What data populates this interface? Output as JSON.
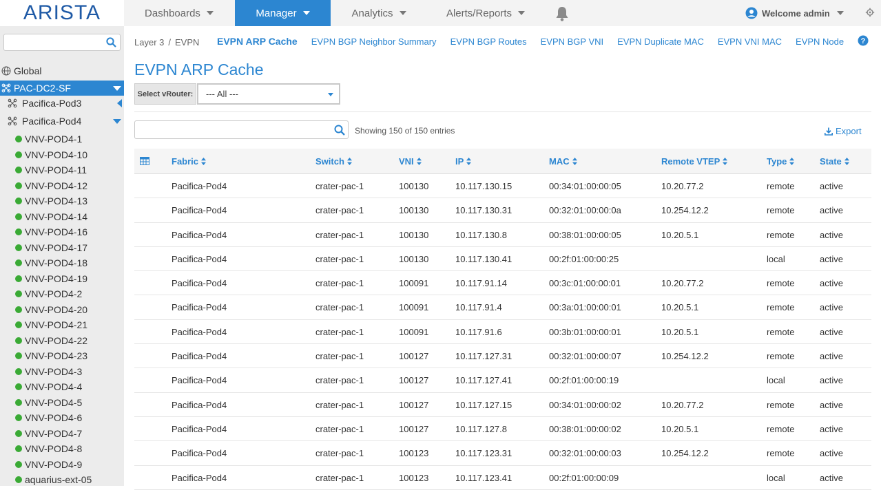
{
  "brand": {
    "logo_text": "ARISTA"
  },
  "topnav": {
    "items": [
      {
        "label": "Dashboards"
      },
      {
        "label": "Manager"
      },
      {
        "label": "Analytics"
      },
      {
        "label": "Alerts/Reports"
      }
    ],
    "welcome": "Welcome admin"
  },
  "sidebar": {
    "search_placeholder": "",
    "global_label": "Global",
    "site_label": "PAC-DC2-SF",
    "pods": [
      "Pacifica-Pod3",
      "Pacifica-Pod4"
    ],
    "vnvs": [
      "VNV-POD4-1",
      "VNV-POD4-10",
      "VNV-POD4-11",
      "VNV-POD4-12",
      "VNV-POD4-13",
      "VNV-POD4-14",
      "VNV-POD4-16",
      "VNV-POD4-17",
      "VNV-POD4-18",
      "VNV-POD4-19",
      "VNV-POD4-2",
      "VNV-POD4-20",
      "VNV-POD4-21",
      "VNV-POD4-22",
      "VNV-POD4-23",
      "VNV-POD4-3",
      "VNV-POD4-4",
      "VNV-POD4-5",
      "VNV-POD4-6",
      "VNV-POD4-7",
      "VNV-POD4-8",
      "VNV-POD4-9",
      "aquarius-ext-05"
    ],
    "status_color": "#3aaa35"
  },
  "breadcrumb": {
    "level1": "Layer 3",
    "separator": "/",
    "level2": "EVPN"
  },
  "subtabs": [
    "EVPN ARP Cache",
    "EVPN BGP Neighbor Summary",
    "EVPN BGP Routes",
    "EVPN BGP VNI",
    "EVPN Duplicate MAC",
    "EVPN VNI MAC",
    "EVPN Node"
  ],
  "page": {
    "title": "EVPN ARP Cache",
    "vrouter_label": "Select vRouter:",
    "vrouter_value": "--- All ---",
    "showing": "Showing 150 of 150 entries",
    "export_label": "Export",
    "accent_color": "#2c86d1"
  },
  "table": {
    "headers": [
      "Fabric",
      "Switch",
      "VNI",
      "IP",
      "MAC",
      "Remote VTEP",
      "Type",
      "State"
    ],
    "rows": [
      [
        "Pacifica-Pod4",
        "crater-pac-1",
        "100130",
        "10.117.130.15",
        "00:34:01:00:00:05",
        "10.20.77.2",
        "remote",
        "active"
      ],
      [
        "Pacifica-Pod4",
        "crater-pac-1",
        "100130",
        "10.117.130.31",
        "00:32:01:00:00:0a",
        "10.254.12.2",
        "remote",
        "active"
      ],
      [
        "Pacifica-Pod4",
        "crater-pac-1",
        "100130",
        "10.117.130.8",
        "00:38:01:00:00:05",
        "10.20.5.1",
        "remote",
        "active"
      ],
      [
        "Pacifica-Pod4",
        "crater-pac-1",
        "100130",
        "10.117.130.41",
        "00:2f:01:00:00:25",
        "",
        "local",
        "active"
      ],
      [
        "Pacifica-Pod4",
        "crater-pac-1",
        "100091",
        "10.117.91.14",
        "00:3c:01:00:00:01",
        "10.20.77.2",
        "remote",
        "active"
      ],
      [
        "Pacifica-Pod4",
        "crater-pac-1",
        "100091",
        "10.117.91.4",
        "00:3a:01:00:00:01",
        "10.20.5.1",
        "remote",
        "active"
      ],
      [
        "Pacifica-Pod4",
        "crater-pac-1",
        "100091",
        "10.117.91.6",
        "00:3b:01:00:00:01",
        "10.20.5.1",
        "remote",
        "active"
      ],
      [
        "Pacifica-Pod4",
        "crater-pac-1",
        "100127",
        "10.117.127.31",
        "00:32:01:00:00:07",
        "10.254.12.2",
        "remote",
        "active"
      ],
      [
        "Pacifica-Pod4",
        "crater-pac-1",
        "100127",
        "10.117.127.41",
        "00:2f:01:00:00:19",
        "",
        "local",
        "active"
      ],
      [
        "Pacifica-Pod4",
        "crater-pac-1",
        "100127",
        "10.117.127.15",
        "00:34:01:00:00:02",
        "10.20.77.2",
        "remote",
        "active"
      ],
      [
        "Pacifica-Pod4",
        "crater-pac-1",
        "100127",
        "10.117.127.8",
        "00:38:01:00:00:02",
        "10.20.5.1",
        "remote",
        "active"
      ],
      [
        "Pacifica-Pod4",
        "crater-pac-1",
        "100123",
        "10.117.123.31",
        "00:32:01:00:00:03",
        "10.254.12.2",
        "remote",
        "active"
      ],
      [
        "Pacifica-Pod4",
        "crater-pac-1",
        "100123",
        "10.117.123.41",
        "00:2f:01:00:00:09",
        "",
        "local",
        "active"
      ]
    ]
  }
}
